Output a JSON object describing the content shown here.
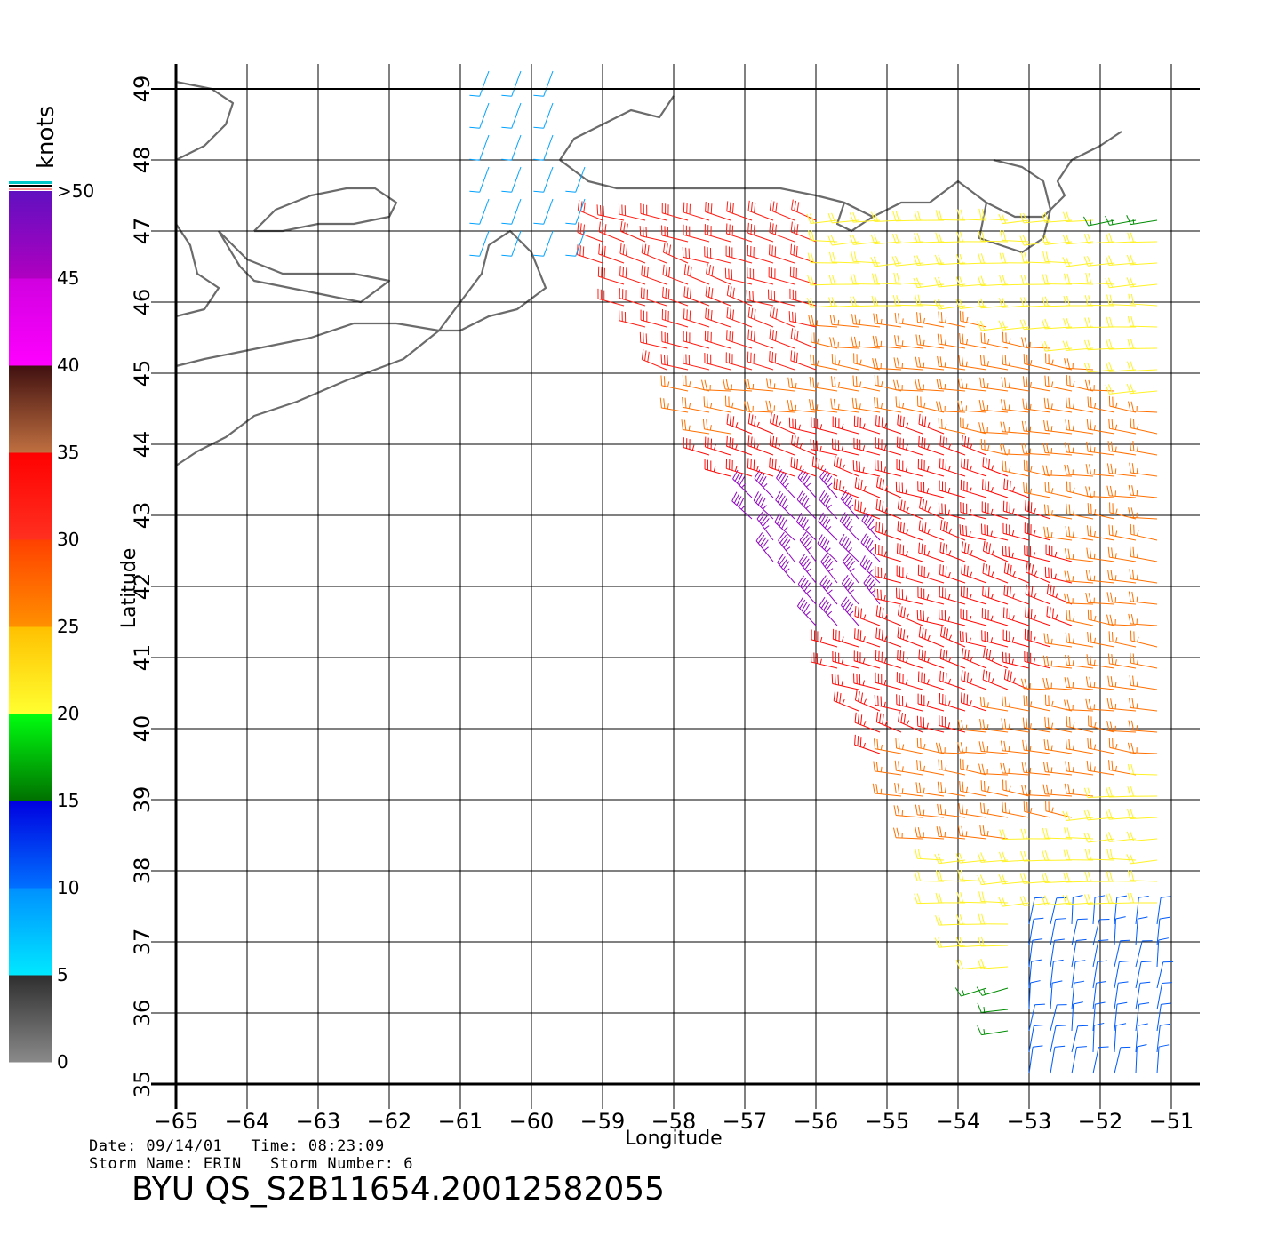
{
  "chart_data": {
    "type": "wind-barb-map",
    "xlabel": "Longitude",
    "ylabel": "Latitude",
    "xlim": [
      -65,
      -51
    ],
    "ylim": [
      35,
      49
    ],
    "x_ticks": [
      "−65",
      "−64",
      "−63",
      "−62",
      "−61",
      "−60",
      "−59",
      "−58",
      "−57",
      "−56",
      "−55",
      "−54",
      "−53",
      "−52",
      "−51"
    ],
    "y_ticks": [
      "35",
      "36",
      "37",
      "38",
      "39",
      "40",
      "41",
      "42",
      "43",
      "44",
      "45",
      "46",
      "47",
      "48",
      "49"
    ],
    "grid": true,
    "colorbar": {
      "units": "knots",
      "labels": [
        "0",
        "5",
        "10",
        "15",
        "20",
        "25",
        "30",
        "35",
        "40",
        "45",
        ">50"
      ],
      "bands": [
        {
          "from": 0,
          "to": 5,
          "colors": [
            "#8a8a8a",
            "#2e2e2e"
          ]
        },
        {
          "from": 5,
          "to": 10,
          "colors": [
            "#00e8ff",
            "#0090ff"
          ]
        },
        {
          "from": 10,
          "to": 15,
          "colors": [
            "#0070ff",
            "#0000e0"
          ]
        },
        {
          "from": 15,
          "to": 20,
          "colors": [
            "#007000",
            "#00ff10"
          ]
        },
        {
          "from": 20,
          "to": 25,
          "colors": [
            "#ffff30",
            "#ffc000"
          ]
        },
        {
          "from": 25,
          "to": 30,
          "colors": [
            "#ff9000",
            "#ff4000"
          ]
        },
        {
          "from": 30,
          "to": 35,
          "colors": [
            "#ff3020",
            "#ff0000"
          ]
        },
        {
          "from": 35,
          "to": 40,
          "colors": [
            "#c07040",
            "#401010"
          ]
        },
        {
          "from": 40,
          "to": 45,
          "colors": [
            "#ff00ff",
            "#d000e0"
          ]
        },
        {
          "from": 45,
          "to": 50,
          "colors": [
            "#b000c0",
            "#6010c0"
          ]
        }
      ]
    },
    "swath": {
      "polygon_lonlat": [
        [
          -59.2,
          47.3
        ],
        [
          -56.0,
          47.3
        ],
        [
          -51.0,
          47.3
        ],
        [
          -51.0,
          35.0
        ],
        [
          -53.0,
          35.0
        ],
        [
          -53.8,
          36.5
        ],
        [
          -54.7,
          38.8
        ],
        [
          -55.9,
          41.0
        ],
        [
          -56.7,
          42.5
        ],
        [
          -58.0,
          44.6
        ],
        [
          -59.2,
          46.9
        ]
      ],
      "speed_zones": [
        {
          "name": "core",
          "center": [
            -56.3,
            42.3
          ],
          "radius": 1.1,
          "speed_kt": 47,
          "direction_deg": 330
        },
        {
          "name": "inner-ring",
          "center": [
            -55.5,
            42.0
          ],
          "radius": 2.4,
          "speed_kt": 34,
          "direction_deg": 300
        },
        {
          "name": "middle-ring",
          "center": [
            -55.0,
            42.0
          ],
          "radius": 3.8,
          "speed_kt": 27,
          "direction_deg": 290
        },
        {
          "name": "outer-ring",
          "center": [
            -54.5,
            42.0
          ],
          "radius": 5.5,
          "speed_kt": 21,
          "direction_deg": 280
        },
        {
          "name": "far-field",
          "center": [
            -53.0,
            42.0
          ],
          "radius": 9.0,
          "speed_kt": 16,
          "direction_deg": 270
        }
      ],
      "north_arc": {
        "lon_range": [
          -59.5,
          -56.0
        ],
        "lat_range": [
          45.0,
          47.4
        ],
        "speed_kt": 32,
        "direction_deg": 300
      },
      "southeast_light": {
        "lon_range": [
          -53.5,
          -51.0
        ],
        "lat_range": [
          35.0,
          37.5
        ],
        "speed_kt": 11,
        "direction_deg": 20
      },
      "scattered_light": {
        "lon_range": [
          -60.6,
          -58.8
        ],
        "lat_range": [
          47.0,
          49.3
        ],
        "speed_kt": 9,
        "direction_deg": 200
      }
    },
    "coastlines": [
      {
        "name": "newfoundland-south-coast",
        "points": [
          [
            -59.6,
            48.0
          ],
          [
            -59.2,
            47.7
          ],
          [
            -58.8,
            47.6
          ],
          [
            -58.2,
            47.6
          ],
          [
            -57.6,
            47.6
          ],
          [
            -57.0,
            47.6
          ],
          [
            -56.5,
            47.6
          ],
          [
            -56.0,
            47.5
          ],
          [
            -55.6,
            47.4
          ],
          [
            -55.2,
            47.2
          ],
          [
            -54.8,
            47.4
          ],
          [
            -54.4,
            47.4
          ],
          [
            -54.0,
            47.7
          ],
          [
            -53.6,
            47.4
          ],
          [
            -53.2,
            47.2
          ],
          [
            -52.8,
            47.2
          ],
          [
            -52.5,
            47.5
          ],
          [
            -52.6,
            47.7
          ],
          [
            -52.4,
            48.0
          ],
          [
            -52.0,
            48.2
          ],
          [
            -51.7,
            48.4
          ]
        ]
      },
      {
        "name": "newfoundland-west-coast",
        "points": [
          [
            -59.6,
            48.0
          ],
          [
            -59.4,
            48.3
          ],
          [
            -59.0,
            48.5
          ],
          [
            -58.6,
            48.7
          ],
          [
            -58.2,
            48.6
          ],
          [
            -58.0,
            48.9
          ]
        ]
      },
      {
        "name": "avalon-peninsula",
        "points": [
          [
            -53.6,
            47.4
          ],
          [
            -53.7,
            46.9
          ],
          [
            -53.4,
            46.8
          ],
          [
            -53.1,
            46.7
          ],
          [
            -52.8,
            46.9
          ],
          [
            -52.7,
            47.3
          ],
          [
            -52.8,
            47.7
          ],
          [
            -53.1,
            47.9
          ],
          [
            -53.5,
            48.0
          ]
        ]
      },
      {
        "name": "burin-peninsula",
        "points": [
          [
            -55.2,
            47.2
          ],
          [
            -55.5,
            47.0
          ],
          [
            -55.7,
            47.1
          ],
          [
            -55.6,
            47.4
          ]
        ]
      },
      {
        "name": "anticosti-island",
        "points": [
          [
            -63.9,
            47.0
          ],
          [
            -63.6,
            47.3
          ],
          [
            -63.1,
            47.5
          ],
          [
            -62.6,
            47.6
          ],
          [
            -62.2,
            47.6
          ],
          [
            -61.9,
            47.4
          ],
          [
            -62.0,
            47.2
          ],
          [
            -62.5,
            47.1
          ],
          [
            -63.0,
            47.1
          ],
          [
            -63.5,
            47.0
          ],
          [
            -63.9,
            47.0
          ]
        ]
      },
      {
        "name": "cape-breton",
        "points": [
          [
            -61.3,
            45.6
          ],
          [
            -61.0,
            46.0
          ],
          [
            -60.7,
            46.4
          ],
          [
            -60.6,
            46.8
          ],
          [
            -60.3,
            47.0
          ],
          [
            -60.0,
            46.7
          ],
          [
            -59.8,
            46.2
          ],
          [
            -60.2,
            45.9
          ],
          [
            -60.6,
            45.8
          ],
          [
            -61.0,
            45.6
          ],
          [
            -61.3,
            45.6
          ]
        ]
      },
      {
        "name": "nova-scotia-atlantic",
        "points": [
          [
            -61.3,
            45.6
          ],
          [
            -61.8,
            45.2
          ],
          [
            -62.6,
            44.9
          ],
          [
            -63.3,
            44.6
          ],
          [
            -63.9,
            44.4
          ],
          [
            -64.3,
            44.1
          ],
          [
            -64.7,
            43.9
          ],
          [
            -65.0,
            43.7
          ]
        ]
      },
      {
        "name": "nova-scotia-north",
        "points": [
          [
            -61.3,
            45.6
          ],
          [
            -61.9,
            45.7
          ],
          [
            -62.5,
            45.7
          ],
          [
            -63.1,
            45.5
          ],
          [
            -63.6,
            45.4
          ],
          [
            -64.1,
            45.3
          ],
          [
            -64.6,
            45.2
          ],
          [
            -65.0,
            45.1
          ]
        ]
      },
      {
        "name": "prince-edward-island",
        "points": [
          [
            -64.4,
            47.0
          ],
          [
            -64.0,
            46.6
          ],
          [
            -63.5,
            46.4
          ],
          [
            -63.0,
            46.4
          ],
          [
            -62.5,
            46.4
          ],
          [
            -62.0,
            46.3
          ],
          [
            -62.4,
            46.0
          ],
          [
            -62.9,
            46.1
          ],
          [
            -63.4,
            46.2
          ],
          [
            -63.9,
            46.3
          ],
          [
            -64.1,
            46.5
          ],
          [
            -64.4,
            47.0
          ]
        ]
      },
      {
        "name": "gaspe-new-brunswick",
        "points": [
          [
            -65.0,
            48.0
          ],
          [
            -64.6,
            48.2
          ],
          [
            -64.3,
            48.5
          ],
          [
            -64.2,
            48.8
          ],
          [
            -64.5,
            49.0
          ],
          [
            -65.0,
            49.1
          ]
        ]
      },
      {
        "name": "new-brunswick-east",
        "points": [
          [
            -65.0,
            47.1
          ],
          [
            -64.8,
            46.8
          ],
          [
            -64.7,
            46.4
          ],
          [
            -64.4,
            46.2
          ],
          [
            -64.6,
            45.9
          ],
          [
            -65.0,
            45.8
          ]
        ]
      }
    ]
  },
  "footer": {
    "line1": "Date: 09/14/01   Time: 08:23:09",
    "line2": "Storm Name: ERIN   Storm Number: 6",
    "title": "BYU  QS_S2B11654.20012582055"
  }
}
